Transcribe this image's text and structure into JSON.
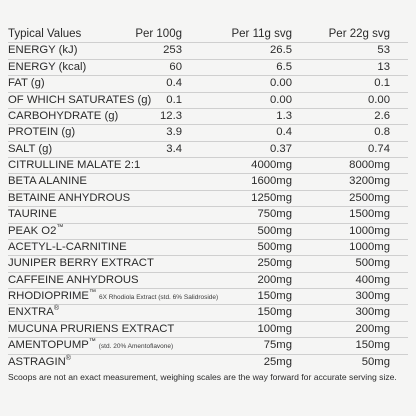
{
  "header": {
    "label": "Typical Values",
    "col1": "Per 100g",
    "col2": "Per 11g svg",
    "col3": "Per 22g svg"
  },
  "nutrition": [
    {
      "name": "ENERGY (kJ)",
      "v1": "253",
      "v2": "26.5",
      "v3": "53"
    },
    {
      "name": "ENERGY (kcal)",
      "v1": "60",
      "v2": "6.5",
      "v3": "13"
    },
    {
      "name": "FAT (g)",
      "v1": "0.4",
      "v2": "0.00",
      "v3": "0.1"
    },
    {
      "name": "OF WHICH SATURATES (g)",
      "v1": "0.1",
      "v2": "0.00",
      "v3": "0.00"
    },
    {
      "name": "CARBOHYDRATE (g)",
      "v1": "12.3",
      "v2": "1.3",
      "v3": "2.6"
    },
    {
      "name": "PROTEIN (g)",
      "v1": "3.9",
      "v2": "0.4",
      "v3": "0.8"
    },
    {
      "name": "SALT (g)",
      "v1": "3.4",
      "v2": "0.37",
      "v3": "0.74"
    }
  ],
  "ingredients": [
    {
      "name": "CITRULLINE MALATE  2:1",
      "v2": "4000mg",
      "v3": "8000mg"
    },
    {
      "name": "BETA ALANINE",
      "v2": "1600mg",
      "v3": "3200mg"
    },
    {
      "name": "BETAINE ANHYDROUS",
      "v2": "1250mg",
      "v3": "2500mg"
    },
    {
      "name": "TAURINE",
      "v2": "750mg",
      "v3": "1500mg"
    },
    {
      "name": "PEAK O2",
      "tm": "™",
      "v2": "500mg",
      "v3": "1000mg"
    },
    {
      "name": "ACETYL-L-CARNITINE",
      "v2": "500mg",
      "v3": "1000mg"
    },
    {
      "name": "JUNIPER BERRY EXTRACT",
      "v2": "250mg",
      "v3": "500mg"
    },
    {
      "name": "CAFFEINE ANHYDROUS",
      "v2": "200mg",
      "v3": "400mg"
    },
    {
      "name": "RHODIOPRIME",
      "tm": "™",
      "note": "6X Rhodiola Extract (std. 6% Salidroside)",
      "v2": "150mg",
      "v3": "300mg"
    },
    {
      "name": "ENXTRA",
      "tm": "®",
      "v2": "150mg",
      "v3": "300mg"
    },
    {
      "name": "MUCUNA PRURIENS EXTRACT",
      "v2": "100mg",
      "v3": "200mg"
    },
    {
      "name": "AMENTOPUMP",
      "tm": "™",
      "note": "(std. 20% Amentoflavone)",
      "v2": "75mg",
      "v3": "150mg"
    },
    {
      "name": "ASTRAGIN",
      "tm": "®",
      "v2": "25mg",
      "v3": "50mg"
    }
  ],
  "footer": "Scoops are not an exact measurement, weighing scales are the way forward for accurate serving size."
}
